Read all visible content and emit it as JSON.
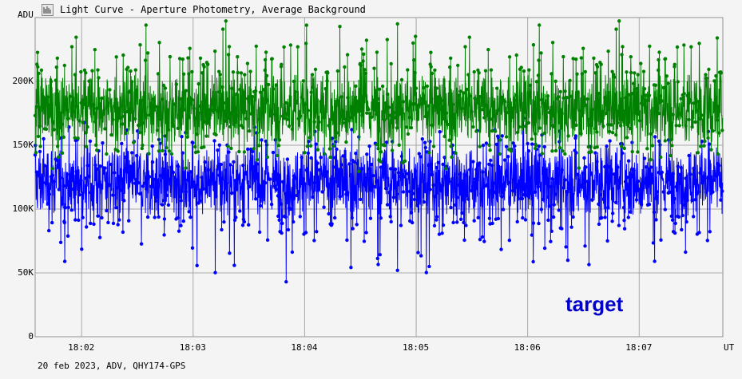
{
  "window": {
    "title": "Light Curve - Aperture Photometry, Average Background",
    "icon": "light-curve-app-icon",
    "footer": "20 feb 2023, ADV, QHY174-GPS"
  },
  "chart_data": {
    "type": "scatter",
    "title": "Light Curve - Aperture Photometry, Average Background",
    "ylabel": "ADU",
    "xlabel": "UT",
    "x_ticks": [
      "18:02",
      "18:03",
      "18:04",
      "18:05",
      "18:06",
      "18:07"
    ],
    "y_ticks": [
      "0",
      "50K",
      "100K",
      "150K",
      "200K"
    ],
    "ylim": [
      0,
      250000
    ],
    "xlim": [
      "18:01:35",
      "18:07:45"
    ],
    "grid": true,
    "lines_connect_points": true,
    "series": [
      {
        "name": "target",
        "color": "#0000ff",
        "mean": 122000,
        "spread": 17000,
        "points_estimated": 2600,
        "notable_minima": [
          {
            "time": "18:03:50",
            "value": 43000
          },
          {
            "time": "18:04:50",
            "value": 52000
          },
          {
            "time": "18:05:07",
            "value": 55000
          },
          {
            "time": "18:01:51",
            "value": 59000
          }
        ]
      },
      {
        "color": "#008000",
        "mean": 178000,
        "spread": 17000,
        "points_estimated": 2600,
        "notable_maxima": [
          {
            "time": "18:04:50",
            "value": 245000
          },
          {
            "time": "18:04:01",
            "value": 244000
          },
          {
            "time": "18:04:19",
            "value": 243000
          },
          {
            "time": "18:07:42",
            "value": 234000
          }
        ]
      }
    ],
    "legend": {
      "position": "bottom-right",
      "text": "target"
    }
  }
}
